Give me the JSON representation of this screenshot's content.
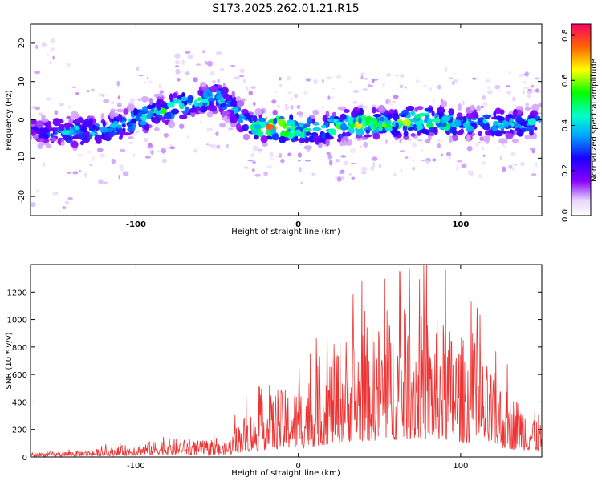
{
  "title": "S173.2025.262.01.21.R15",
  "chart_data": [
    {
      "type": "heatmap",
      "name": "spectrogram",
      "xlabel": "Height of straight line (km)",
      "ylabel": "Frequency (Hz)",
      "xlim": [
        -165,
        150
      ],
      "ylim": [
        -25,
        25
      ],
      "xticks": [
        "-100",
        "0",
        "100"
      ],
      "yticks": [
        "20",
        "10",
        "0",
        "-10",
        "-20"
      ],
      "colorbar": {
        "label": "Normalized spectral amplitude",
        "range": [
          0.0,
          0.85
        ],
        "ticks": [
          "0.0",
          "0.2",
          "0.4",
          "0.6",
          "0.8"
        ]
      },
      "track": {
        "x": [
          -160,
          -140,
          -120,
          -100,
          -80,
          -60,
          -50,
          -40,
          -30,
          -20,
          -10,
          0,
          20,
          40,
          60,
          80,
          100,
          120,
          140,
          150
        ],
        "center": [
          -3,
          -3,
          -3,
          0,
          3,
          5,
          6,
          3,
          -2,
          -2,
          -2,
          -3,
          -2,
          -1,
          -1,
          0,
          -1,
          -1,
          -1,
          0
        ],
        "intensity": [
          0.3,
          0.45,
          0.45,
          0.5,
          0.55,
          0.55,
          0.5,
          0.45,
          0.5,
          0.75,
          0.85,
          0.55,
          0.6,
          0.65,
          0.6,
          0.7,
          0.5,
          0.5,
          0.45,
          0.4
        ]
      }
    },
    {
      "type": "line",
      "name": "snr",
      "xlabel": "Height of straight line (km)",
      "ylabel": "SNR (10 * v/v)",
      "xlim": [
        -165,
        150
      ],
      "ylim": [
        0,
        1400
      ],
      "xticks": [
        "-100",
        "0",
        "100"
      ],
      "yticks": [
        "0",
        "200",
        "400",
        "600",
        "800",
        "1000",
        "1200"
      ],
      "color": "#ee3333",
      "envelope": {
        "x": [
          -165,
          -140,
          -120,
          -100,
          -80,
          -60,
          -45,
          -35,
          -25,
          -15,
          0,
          15,
          25,
          40,
          55,
          70,
          85,
          100,
          115,
          130,
          150
        ],
        "y": [
          25,
          35,
          50,
          80,
          110,
          95,
          80,
          230,
          300,
          380,
          420,
          560,
          700,
          760,
          800,
          850,
          820,
          720,
          560,
          380,
          250
        ]
      }
    }
  ]
}
